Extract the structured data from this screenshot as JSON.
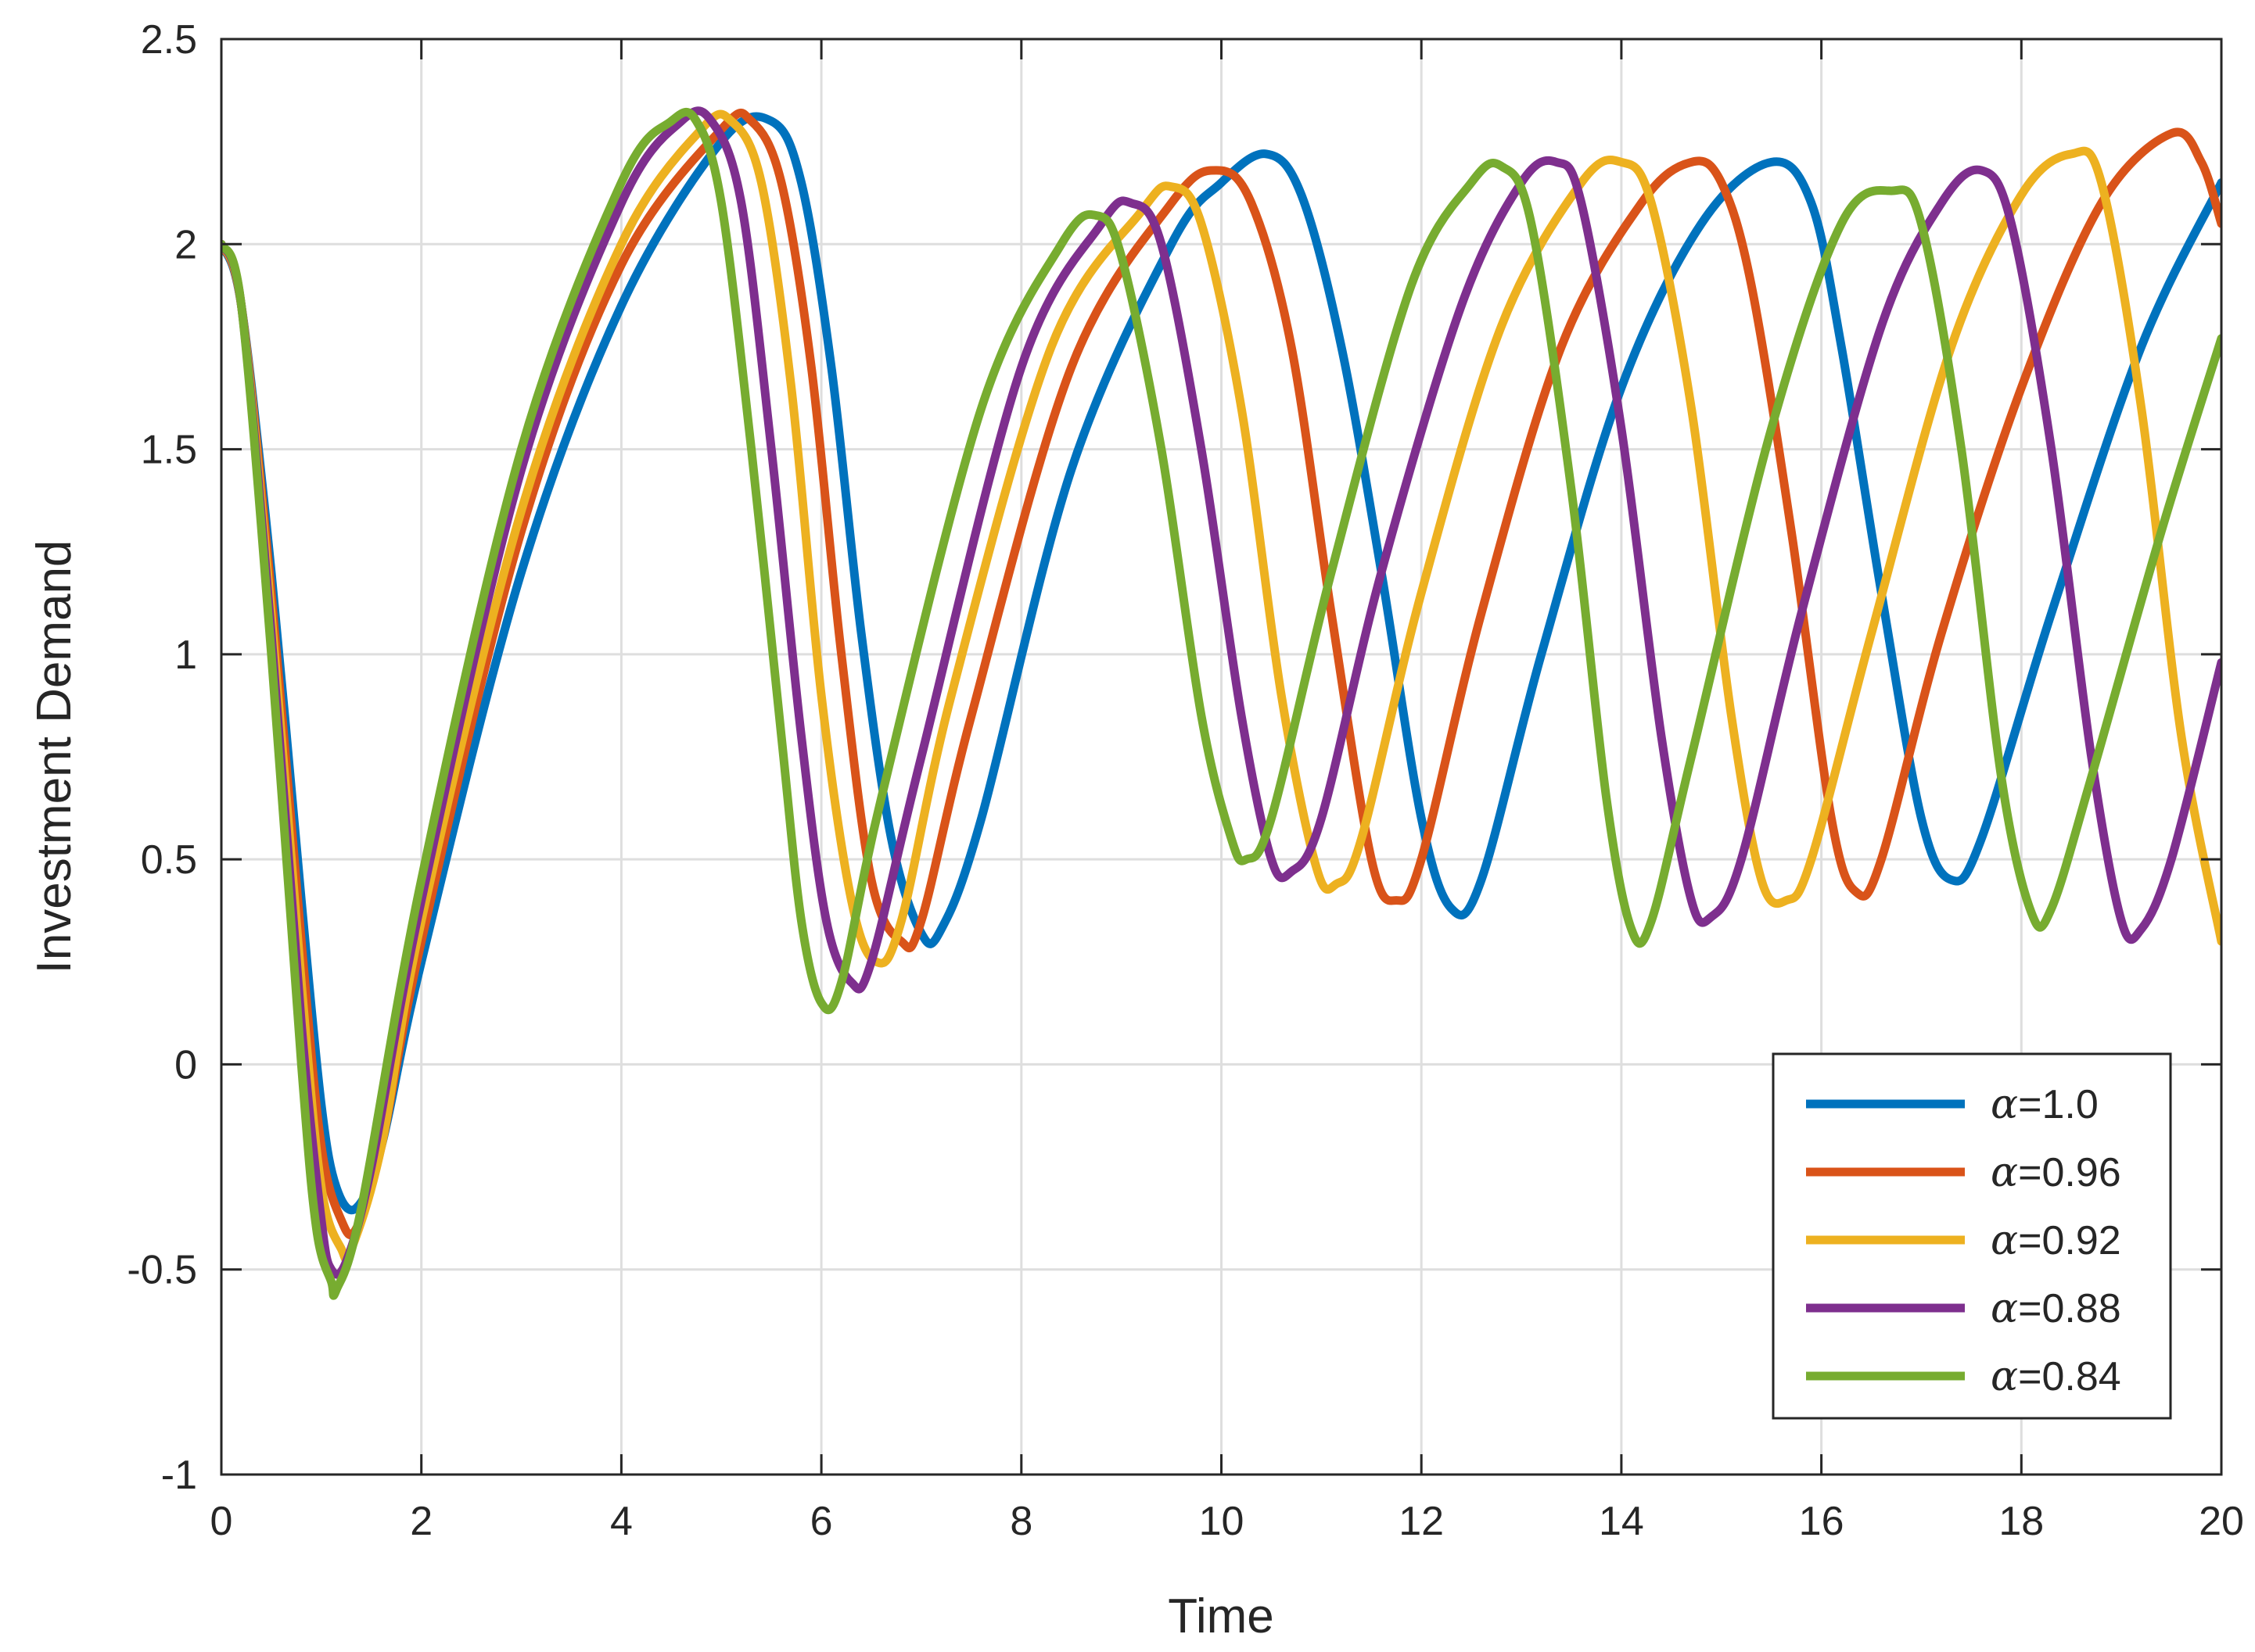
{
  "chart_data": {
    "type": "line",
    "title": "",
    "xlabel": "Time",
    "ylabel": "Investment Demand",
    "xlim": [
      0,
      20
    ],
    "ylim": [
      -1,
      2.5
    ],
    "xticks": [
      0,
      2,
      4,
      6,
      8,
      10,
      12,
      14,
      16,
      18,
      20
    ],
    "yticks": [
      -1,
      -0.5,
      0,
      0.5,
      1,
      1.5,
      2,
      2.5
    ],
    "xtick_labels": [
      "0",
      "2",
      "4",
      "6",
      "8",
      "10",
      "12",
      "14",
      "16",
      "18",
      "20"
    ],
    "ytick_labels": [
      "-1",
      "-0.5",
      "0",
      "0.5",
      "1",
      "1.5",
      "2",
      "2.5"
    ],
    "grid": true,
    "legend_position": "bottom-right",
    "series": [
      {
        "name": "α=1.0",
        "alpha_symbol": "α",
        "label_value": "=1.0",
        "color": "#0072BD",
        "points": [
          [
            0,
            2.0
          ],
          [
            0.2,
            1.85
          ],
          [
            0.5,
            1.2
          ],
          [
            0.8,
            0.4
          ],
          [
            1.0,
            -0.1
          ],
          [
            1.15,
            -0.3
          ],
          [
            1.35,
            -0.35
          ],
          [
            1.6,
            -0.2
          ],
          [
            2.0,
            0.25
          ],
          [
            3.0,
            1.2
          ],
          [
            4.0,
            1.85
          ],
          [
            5.0,
            2.25
          ],
          [
            5.5,
            2.3
          ],
          [
            5.8,
            2.15
          ],
          [
            6.1,
            1.7
          ],
          [
            6.4,
            1.05
          ],
          [
            6.7,
            0.55
          ],
          [
            7.0,
            0.32
          ],
          [
            7.2,
            0.33
          ],
          [
            7.6,
            0.6
          ],
          [
            8.5,
            1.45
          ],
          [
            9.5,
            2.0
          ],
          [
            10.0,
            2.15
          ],
          [
            10.45,
            2.22
          ],
          [
            10.8,
            2.12
          ],
          [
            11.2,
            1.75
          ],
          [
            11.6,
            1.2
          ],
          [
            12.0,
            0.6
          ],
          [
            12.3,
            0.38
          ],
          [
            12.6,
            0.45
          ],
          [
            13.2,
            1.0
          ],
          [
            14.0,
            1.65
          ],
          [
            14.8,
            2.05
          ],
          [
            15.5,
            2.2
          ],
          [
            15.9,
            2.1
          ],
          [
            16.2,
            1.75
          ],
          [
            16.6,
            1.15
          ],
          [
            17.0,
            0.6
          ],
          [
            17.3,
            0.45
          ],
          [
            17.6,
            0.55
          ],
          [
            18.3,
            1.1
          ],
          [
            19.2,
            1.75
          ],
          [
            20.0,
            2.15
          ]
        ]
      },
      {
        "name": "α=0.96",
        "alpha_symbol": "α",
        "label_value": "=0.96",
        "color": "#D95319",
        "points": [
          [
            0,
            2.0
          ],
          [
            0.2,
            1.85
          ],
          [
            0.5,
            1.15
          ],
          [
            0.8,
            0.3
          ],
          [
            1.0,
            -0.2
          ],
          [
            1.2,
            -0.38
          ],
          [
            1.35,
            -0.4
          ],
          [
            1.6,
            -0.2
          ],
          [
            2.0,
            0.3
          ],
          [
            3.0,
            1.3
          ],
          [
            4.0,
            1.95
          ],
          [
            5.0,
            2.28
          ],
          [
            5.3,
            2.3
          ],
          [
            5.6,
            2.15
          ],
          [
            5.9,
            1.7
          ],
          [
            6.2,
            1.0
          ],
          [
            6.5,
            0.45
          ],
          [
            6.8,
            0.3
          ],
          [
            7.0,
            0.35
          ],
          [
            7.5,
            0.85
          ],
          [
            8.5,
            1.7
          ],
          [
            9.5,
            2.1
          ],
          [
            9.95,
            2.18
          ],
          [
            10.3,
            2.1
          ],
          [
            10.7,
            1.75
          ],
          [
            11.1,
            1.1
          ],
          [
            11.5,
            0.5
          ],
          [
            11.75,
            0.4
          ],
          [
            12.0,
            0.5
          ],
          [
            12.6,
            1.1
          ],
          [
            13.4,
            1.75
          ],
          [
            14.2,
            2.1
          ],
          [
            14.7,
            2.2
          ],
          [
            15.0,
            2.15
          ],
          [
            15.3,
            1.9
          ],
          [
            15.7,
            1.3
          ],
          [
            16.1,
            0.6
          ],
          [
            16.35,
            0.42
          ],
          [
            16.6,
            0.5
          ],
          [
            17.2,
            1.05
          ],
          [
            18.0,
            1.65
          ],
          [
            18.8,
            2.1
          ],
          [
            19.5,
            2.27
          ],
          [
            19.8,
            2.2
          ],
          [
            20.0,
            2.05
          ]
        ]
      },
      {
        "name": "α=0.92",
        "alpha_symbol": "α",
        "label_value": "=0.92",
        "color": "#EDB120",
        "points": [
          [
            0,
            2.0
          ],
          [
            0.2,
            1.85
          ],
          [
            0.5,
            1.1
          ],
          [
            0.8,
            0.2
          ],
          [
            1.0,
            -0.3
          ],
          [
            1.2,
            -0.45
          ],
          [
            1.3,
            -0.45
          ],
          [
            1.6,
            -0.2
          ],
          [
            2.0,
            0.35
          ],
          [
            3.0,
            1.35
          ],
          [
            4.0,
            2.0
          ],
          [
            4.8,
            2.28
          ],
          [
            5.1,
            2.3
          ],
          [
            5.4,
            2.15
          ],
          [
            5.7,
            1.65
          ],
          [
            6.0,
            0.9
          ],
          [
            6.3,
            0.4
          ],
          [
            6.55,
            0.25
          ],
          [
            6.8,
            0.35
          ],
          [
            7.3,
            0.9
          ],
          [
            8.3,
            1.75
          ],
          [
            9.2,
            2.08
          ],
          [
            9.5,
            2.14
          ],
          [
            9.8,
            2.05
          ],
          [
            10.2,
            1.6
          ],
          [
            10.6,
            0.9
          ],
          [
            10.95,
            0.48
          ],
          [
            11.15,
            0.44
          ],
          [
            11.4,
            0.55
          ],
          [
            12.0,
            1.15
          ],
          [
            12.8,
            1.8
          ],
          [
            13.6,
            2.15
          ],
          [
            14.0,
            2.2
          ],
          [
            14.3,
            2.1
          ],
          [
            14.7,
            1.6
          ],
          [
            15.1,
            0.85
          ],
          [
            15.4,
            0.45
          ],
          [
            15.65,
            0.4
          ],
          [
            15.9,
            0.5
          ],
          [
            16.5,
            1.05
          ],
          [
            17.3,
            1.75
          ],
          [
            18.0,
            2.12
          ],
          [
            18.5,
            2.22
          ],
          [
            18.8,
            2.15
          ],
          [
            19.2,
            1.6
          ],
          [
            19.6,
            0.8
          ],
          [
            20.0,
            0.3
          ]
        ]
      },
      {
        "name": "α=0.88",
        "alpha_symbol": "α",
        "label_value": "=0.88",
        "color": "#7E2F8E",
        "points": [
          [
            0,
            2.0
          ],
          [
            0.2,
            1.85
          ],
          [
            0.5,
            1.05
          ],
          [
            0.8,
            0.1
          ],
          [
            1.0,
            -0.38
          ],
          [
            1.1,
            -0.5
          ],
          [
            1.25,
            -0.48
          ],
          [
            1.5,
            -0.25
          ],
          [
            2.0,
            0.4
          ],
          [
            3.0,
            1.45
          ],
          [
            4.0,
            2.1
          ],
          [
            4.6,
            2.3
          ],
          [
            4.9,
            2.3
          ],
          [
            5.2,
            2.1
          ],
          [
            5.5,
            1.5
          ],
          [
            5.8,
            0.8
          ],
          [
            6.05,
            0.35
          ],
          [
            6.3,
            0.2
          ],
          [
            6.5,
            0.25
          ],
          [
            7.0,
            0.75
          ],
          [
            8.0,
            1.7
          ],
          [
            8.8,
            2.05
          ],
          [
            9.1,
            2.1
          ],
          [
            9.4,
            2.0
          ],
          [
            9.8,
            1.5
          ],
          [
            10.2,
            0.85
          ],
          [
            10.5,
            0.5
          ],
          [
            10.7,
            0.47
          ],
          [
            11.0,
            0.6
          ],
          [
            11.6,
            1.2
          ],
          [
            12.4,
            1.85
          ],
          [
            13.0,
            2.15
          ],
          [
            13.35,
            2.2
          ],
          [
            13.6,
            2.1
          ],
          [
            14.0,
            1.55
          ],
          [
            14.4,
            0.8
          ],
          [
            14.7,
            0.4
          ],
          [
            14.9,
            0.36
          ],
          [
            15.2,
            0.5
          ],
          [
            15.8,
            1.1
          ],
          [
            16.6,
            1.8
          ],
          [
            17.2,
            2.1
          ],
          [
            17.6,
            2.18
          ],
          [
            17.9,
            2.05
          ],
          [
            18.3,
            1.5
          ],
          [
            18.7,
            0.75
          ],
          [
            19.0,
            0.35
          ],
          [
            19.2,
            0.33
          ],
          [
            19.5,
            0.5
          ],
          [
            20.0,
            0.98
          ]
        ]
      },
      {
        "name": "α=0.84",
        "alpha_symbol": "α",
        "label_value": "=0.84",
        "color": "#77AC30",
        "points": [
          [
            0,
            2.0
          ],
          [
            0.2,
            1.85
          ],
          [
            0.5,
            1.0
          ],
          [
            0.8,
            0.0
          ],
          [
            0.95,
            -0.4
          ],
          [
            1.1,
            -0.53
          ],
          [
            1.15,
            -0.55
          ],
          [
            1.4,
            -0.35
          ],
          [
            2.0,
            0.45
          ],
          [
            3.0,
            1.5
          ],
          [
            4.0,
            2.15
          ],
          [
            4.5,
            2.3
          ],
          [
            4.75,
            2.3
          ],
          [
            5.0,
            2.1
          ],
          [
            5.3,
            1.5
          ],
          [
            5.6,
            0.8
          ],
          [
            5.8,
            0.35
          ],
          [
            6.0,
            0.15
          ],
          [
            6.2,
            0.2
          ],
          [
            6.6,
            0.65
          ],
          [
            7.6,
            1.6
          ],
          [
            8.4,
            2.0
          ],
          [
            8.75,
            2.07
          ],
          [
            9.0,
            1.97
          ],
          [
            9.4,
            1.5
          ],
          [
            9.8,
            0.85
          ],
          [
            10.1,
            0.55
          ],
          [
            10.25,
            0.5
          ],
          [
            10.5,
            0.6
          ],
          [
            11.1,
            1.2
          ],
          [
            11.9,
            1.9
          ],
          [
            12.5,
            2.15
          ],
          [
            12.8,
            2.19
          ],
          [
            13.1,
            2.05
          ],
          [
            13.5,
            1.4
          ],
          [
            13.85,
            0.65
          ],
          [
            14.1,
            0.33
          ],
          [
            14.3,
            0.35
          ],
          [
            14.7,
            0.75
          ],
          [
            15.5,
            1.55
          ],
          [
            16.2,
            2.05
          ],
          [
            16.7,
            2.13
          ],
          [
            17.0,
            2.05
          ],
          [
            17.4,
            1.5
          ],
          [
            17.8,
            0.7
          ],
          [
            18.1,
            0.37
          ],
          [
            18.3,
            0.38
          ],
          [
            18.7,
            0.7
          ],
          [
            19.4,
            1.3
          ],
          [
            20.0,
            1.77
          ]
        ]
      }
    ]
  }
}
